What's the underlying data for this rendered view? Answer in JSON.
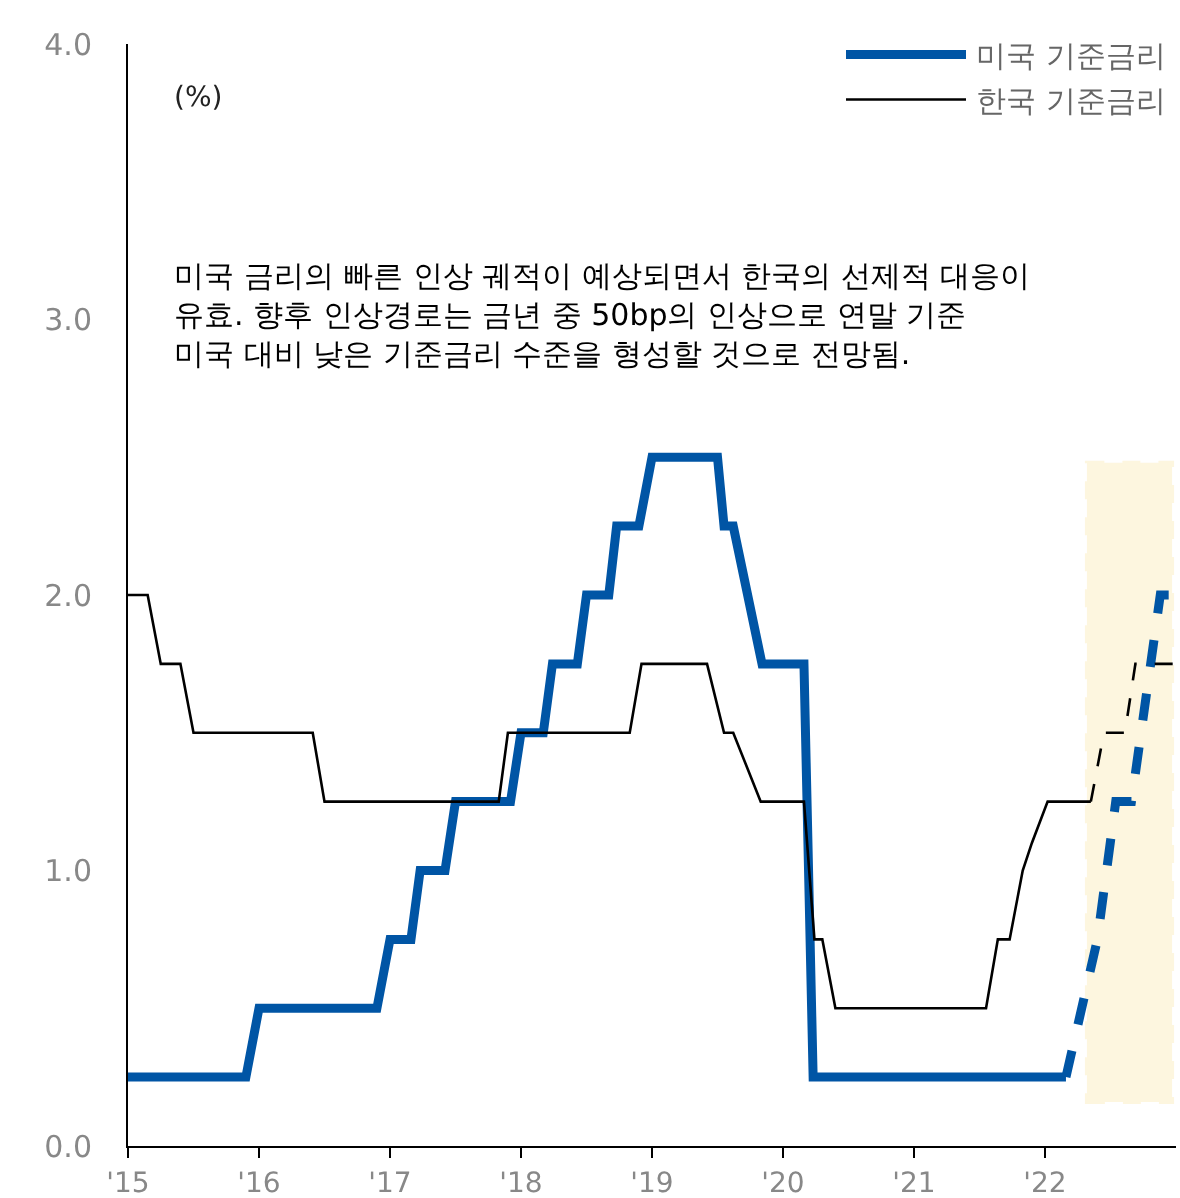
{
  "chart_data": {
    "type": "line",
    "ylabel": "(%)",
    "annotations": [
      "미국 금리의 빠른 인상 궤적이 예상되면서 한국의 선제적 대응이 유효. 향후 인상경로는 금년 중 50bp의 인상으로 연말 기준 미국 대비 낮은 기준금리 수준을 형성할 것으로 전망됨."
    ],
    "series": [
      {
        "name": "미국 기준금리",
        "color": "#0055a5",
        "line_style": "solid",
        "x": [
          2015,
          2015.9,
          2016.0,
          2016.9,
          2017.0,
          2017.16,
          2017.23,
          2017.42,
          2017.5,
          2017.92,
          2018.0,
          2018.17,
          2018.24,
          2018.43,
          2018.5,
          2018.67,
          2018.73,
          2018.9,
          2019.0,
          2019.5,
          2019.55,
          2019.62,
          2019.84,
          2020.16,
          2020.23,
          2022.16
        ],
        "values": [
          0.25,
          0.25,
          0.5,
          0.5,
          0.75,
          0.75,
          1.0,
          1.0,
          1.25,
          1.25,
          1.5,
          1.5,
          1.75,
          1.75,
          2.0,
          2.0,
          2.25,
          2.25,
          2.5,
          2.5,
          2.25,
          2.25,
          1.75,
          1.75,
          0.25,
          0.25
        ]
      },
      {
        "color": "#0055a5",
        "line_style": "dashed",
        "x": [
          2022.16,
          2022.4,
          2022.54,
          2022.66,
          2022.88,
          2023
        ],
        "values": [
          0.25,
          0.75,
          1.25,
          1.25,
          2.0,
          2.0
        ]
      },
      {
        "name": "한국 기준금리",
        "color": "#000000",
        "line_style": "solid",
        "x": [
          2015,
          2015.15,
          2015.25,
          2015.4,
          2015.5,
          2016.41,
          2016.5,
          2017.83,
          2017.9,
          2018.83,
          2018.92,
          2019.42,
          2019.55,
          2019.62,
          2019.83,
          2020.16,
          2020.24,
          2020.3,
          2020.4,
          2021.55,
          2021.64,
          2021.73,
          2021.83,
          2021.9,
          2022.02,
          2022.35
        ],
        "values": [
          2.0,
          2.0,
          1.75,
          1.75,
          1.5,
          1.5,
          1.25,
          1.25,
          1.5,
          1.5,
          1.75,
          1.75,
          1.5,
          1.5,
          1.25,
          1.25,
          0.75,
          0.75,
          0.5,
          0.5,
          0.75,
          0.75,
          1.0,
          1.1,
          1.25,
          1.25
        ]
      },
      {
        "color": "#000000",
        "line_style": "dashed",
        "x": [
          2022.35,
          2022.45,
          2022.61,
          2022.69,
          2023
        ],
        "values": [
          1.25,
          1.5,
          1.5,
          1.75,
          1.75
        ]
      }
    ],
    "xlim": [
      2015,
      2023
    ],
    "xticks": [
      {
        "value": 2015,
        "label": "'15"
      },
      {
        "value": 2016,
        "label": "'16"
      },
      {
        "value": 2017,
        "label": "'17"
      },
      {
        "value": 2018,
        "label": "'18"
      },
      {
        "value": 2019,
        "label": "'19"
      },
      {
        "value": 2020,
        "label": "'20"
      },
      {
        "value": 2021,
        "label": "'21"
      },
      {
        "value": 2022,
        "label": "'22"
      }
    ],
    "ylim": [
      0,
      4
    ],
    "yticks": [
      {
        "value": 0,
        "label": "0.0"
      },
      {
        "value": 1,
        "label": "1.0"
      },
      {
        "value": 2,
        "label": "2.0"
      },
      {
        "value": 3,
        "label": "3.0"
      },
      {
        "value": 4,
        "label": "4.0"
      }
    ],
    "bands": [
      {
        "axis": "x",
        "from": 2022.32,
        "to": 2022.97,
        "color": "#f5b800"
      }
    ],
    "grid": false,
    "legend": "top right",
    "marker": "none"
  }
}
